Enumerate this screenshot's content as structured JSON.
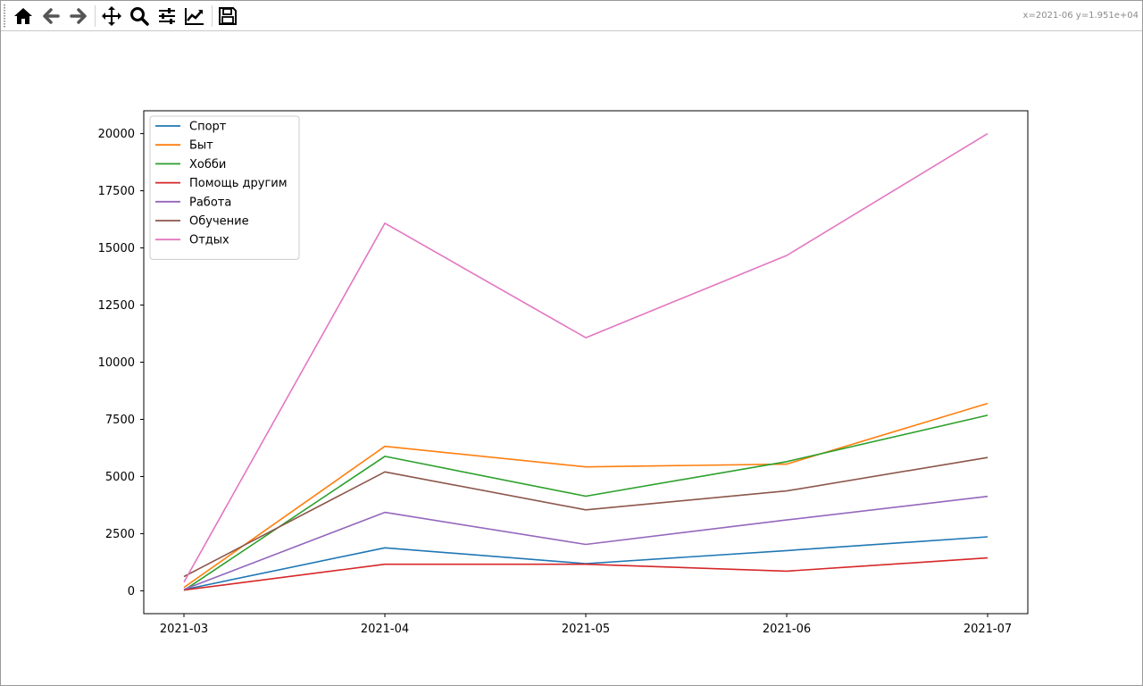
{
  "toolbar": {
    "buttons": [
      {
        "name": "home-button",
        "icon": "home-icon"
      },
      {
        "name": "back-button",
        "icon": "arrow-left-icon"
      },
      {
        "name": "forward-button",
        "icon": "arrow-right-icon"
      },
      {
        "name": "pan-button",
        "icon": "move-icon"
      },
      {
        "name": "zoom-button",
        "icon": "zoom-icon"
      },
      {
        "name": "subplots-button",
        "icon": "sliders-icon"
      },
      {
        "name": "axes-edit-button",
        "icon": "line-chart-icon"
      },
      {
        "name": "save-button",
        "icon": "floppy-disk-icon"
      }
    ],
    "coords": "x=2021-06 y=1.951e+04"
  },
  "chart_data": {
    "type": "line",
    "title": "",
    "xlabel": "",
    "ylabel": "",
    "categories": [
      "2021-03",
      "2021-04",
      "2021-05",
      "2021-06",
      "2021-07"
    ],
    "ylim": [
      -1000,
      21000
    ],
    "yticks": [
      0,
      2500,
      5000,
      7500,
      10000,
      12500,
      15000,
      17500,
      20000
    ],
    "grid": false,
    "legend_position": "top-left",
    "series": [
      {
        "name": "Спорт",
        "color": "#1f77b4",
        "values": [
          50,
          1880,
          1190,
          1760,
          2360
        ]
      },
      {
        "name": "Быт",
        "color": "#ff7f0e",
        "values": [
          150,
          6320,
          5420,
          5540,
          8200
        ]
      },
      {
        "name": "Хобби",
        "color": "#2ca02c",
        "values": [
          20,
          5880,
          4140,
          5650,
          7680
        ]
      },
      {
        "name": "Помощь другим",
        "color": "#d62728",
        "values": [
          30,
          1160,
          1160,
          860,
          1440
        ]
      },
      {
        "name": "Работа",
        "color": "#9467bd",
        "values": [
          60,
          3430,
          2030,
          3100,
          4130
        ]
      },
      {
        "name": "Обучение",
        "color": "#8c564b",
        "values": [
          620,
          5200,
          3540,
          4370,
          5830
        ]
      },
      {
        "name": "Отдых",
        "color": "#e377c2",
        "values": [
          380,
          16080,
          11070,
          14670,
          20000
        ]
      }
    ]
  }
}
